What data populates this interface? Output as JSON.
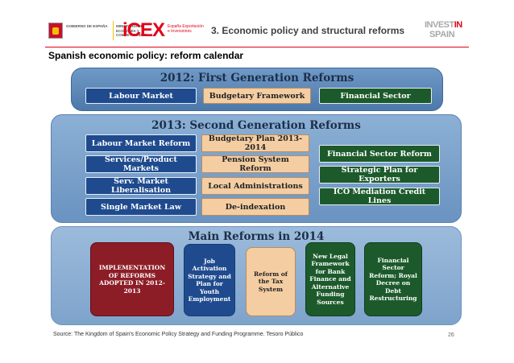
{
  "header": {
    "gov_logo_text": "GOBIERNO DE ESPAÑA",
    "gov_ministry_text": "MINISTERIO DE ECONOMÍA Y COMPETITIVIDAD",
    "icex_word": "iCEX",
    "icex_sub": "España Exportación e Inversiones",
    "title": "3. Economic policy and structural reforms",
    "invest_line1_a": "INVEST",
    "invest_line1_b": "IN",
    "invest_line2": "SPAIN",
    "colors": {
      "brand_red": "#e2001a",
      "gov_yellow": "#f2c200"
    }
  },
  "page_title": "Spanish economic policy: reform calendar",
  "panel_2012": {
    "title": "2012: First Generation Reforms",
    "boxes": [
      "Labour Market",
      "Budgetary Framework",
      "Financial Sector"
    ]
  },
  "panel_2013": {
    "title": "2013: Second Generation Reforms",
    "left_boxes": [
      "Labour Market Reform",
      "Services/Product Markets",
      "Serv. Market Liberalisation",
      "Single Market Law"
    ],
    "middle_boxes": [
      "Budgetary Plan 2013-2014",
      "Pension System Reform",
      "Local Administrations",
      "De-indexation"
    ],
    "right_boxes": [
      "Financial Sector Reform",
      "Strategic Plan for Exporters",
      "ICO Mediation Credit  Lines"
    ]
  },
  "panel_2014": {
    "title": "Main Reforms in 2014",
    "boxes": [
      "IMPLEMENTATION OF REFORMS ADOPTED IN 2012-2013",
      "Job Activation Strategy and Plan for Youth Employment",
      "Reform of the Tax System",
      "New Legal Framework for Bank Finance and Alternative Funding Sources",
      "Financial Sector Reform; Royal Decree on Debt Restructuring"
    ]
  },
  "footer": {
    "source": "Source: The Kingdom of Spain's Economic Policy Strategy and Funding Programme. Tesoro Público",
    "page_number": "26"
  },
  "colors": {
    "blue_box": "#1f4b8e",
    "tan_box": "#f4cda2",
    "green_box": "#1c5a2b",
    "maroon_box": "#8c1d26"
  }
}
